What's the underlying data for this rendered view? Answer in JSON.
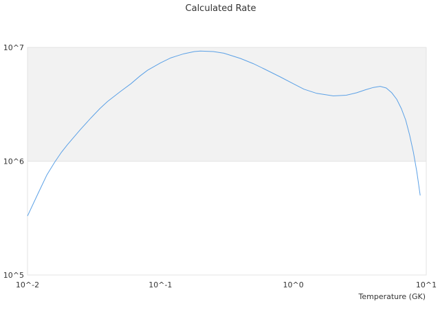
{
  "chart_data": {
    "type": "line",
    "title": "Calculated Rate",
    "xlabel": "Temperature (GK)",
    "ylabel": "",
    "x_scale": "log",
    "y_scale": "log",
    "xlim": [
      0.01,
      10
    ],
    "ylim": [
      100000,
      10000000
    ],
    "x_ticks": [
      {
        "value": 0.01,
        "label": "10^-2"
      },
      {
        "value": 0.1,
        "label": "10^-1"
      },
      {
        "value": 1,
        "label": "10^0"
      },
      {
        "value": 10,
        "label": "10^1"
      }
    ],
    "y_ticks": [
      {
        "value": 100000,
        "label": "10^5"
      },
      {
        "value": 1000000,
        "label": "10^6"
      },
      {
        "value": 10000000,
        "label": "10^7"
      }
    ],
    "shaded_band": {
      "y_from": 1000000,
      "y_to": 10000000,
      "color": "#f2f2f2"
    },
    "grid": false,
    "legend": "none",
    "series": [
      {
        "color": "#5aa0e6",
        "points": [
          [
            0.01,
            330000
          ],
          [
            0.012,
            520000
          ],
          [
            0.014,
            760000
          ],
          [
            0.016,
            980000
          ],
          [
            0.018,
            1200000
          ],
          [
            0.02,
            1400000
          ],
          [
            0.025,
            1900000
          ],
          [
            0.03,
            2400000
          ],
          [
            0.035,
            2900000
          ],
          [
            0.04,
            3350000
          ],
          [
            0.05,
            4100000
          ],
          [
            0.06,
            4800000
          ],
          [
            0.07,
            5600000
          ],
          [
            0.08,
            6300000
          ],
          [
            0.1,
            7300000
          ],
          [
            0.12,
            8100000
          ],
          [
            0.15,
            8800000
          ],
          [
            0.18,
            9200000
          ],
          [
            0.2,
            9300000
          ],
          [
            0.25,
            9200000
          ],
          [
            0.3,
            8900000
          ],
          [
            0.4,
            8000000
          ],
          [
            0.5,
            7200000
          ],
          [
            0.6,
            6500000
          ],
          [
            0.8,
            5500000
          ],
          [
            1.0,
            4800000
          ],
          [
            1.2,
            4300000
          ],
          [
            1.5,
            3950000
          ],
          [
            2.0,
            3750000
          ],
          [
            2.5,
            3800000
          ],
          [
            3.0,
            4000000
          ],
          [
            3.5,
            4250000
          ],
          [
            4.0,
            4450000
          ],
          [
            4.5,
            4550000
          ],
          [
            5.0,
            4400000
          ],
          [
            5.5,
            4000000
          ],
          [
            6.0,
            3500000
          ],
          [
            6.5,
            2900000
          ],
          [
            7.0,
            2300000
          ],
          [
            7.5,
            1700000
          ],
          [
            8.0,
            1200000
          ],
          [
            8.5,
            800000
          ],
          [
            9.0,
            500000
          ]
        ]
      }
    ]
  }
}
